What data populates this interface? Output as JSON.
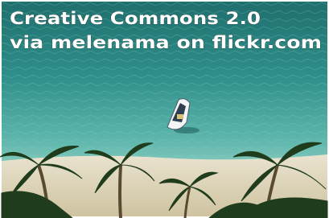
{
  "caption": {
    "line1": "Creative Commons 2.0",
    "line2": "via melenama on flickr.com"
  }
}
